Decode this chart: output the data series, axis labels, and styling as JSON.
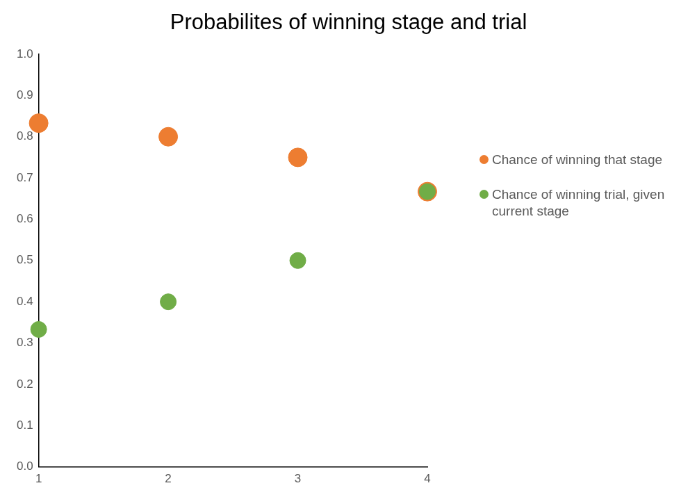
{
  "chart_data": {
    "type": "scatter",
    "title": "Probabilites of winning stage and trial",
    "x": [
      1,
      2,
      3,
      4
    ],
    "series": [
      {
        "name": "Chance of winning that stage",
        "color": "#ed7d31",
        "values": [
          0.833,
          0.8,
          0.75,
          0.667
        ]
      },
      {
        "name": "Chance of winning trial, given current stage",
        "color": "#70ad47",
        "values": [
          0.333,
          0.4,
          0.5,
          0.667
        ]
      }
    ],
    "xlim": [
      1,
      4
    ],
    "xticks": [
      1,
      2,
      3,
      4
    ],
    "ylim": [
      0,
      1
    ],
    "yticks": [
      {
        "value": 0,
        "label": "0.0"
      },
      {
        "value": 0.1,
        "label": "0.1"
      },
      {
        "value": 0.2,
        "label": "0.2"
      },
      {
        "value": 0.3,
        "label": "0.3"
      },
      {
        "value": 0.4,
        "label": "0.4"
      },
      {
        "value": 0.5,
        "label": "0.5"
      },
      {
        "value": 0.6,
        "label": "0.6"
      },
      {
        "value": 0.7,
        "label": "0.7"
      },
      {
        "value": 0.8,
        "label": "0.8"
      },
      {
        "value": 0.9,
        "label": "0.9"
      },
      {
        "value": 1,
        "label": "1.0"
      }
    ],
    "grid": false,
    "legend": "right",
    "marker": "circle"
  }
}
